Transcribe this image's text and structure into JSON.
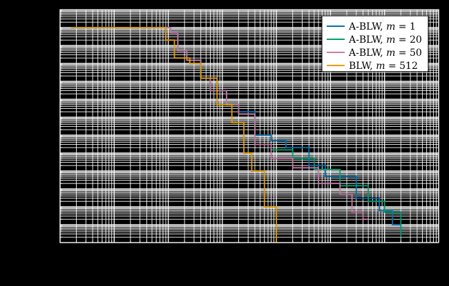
{
  "chart_data": {
    "type": "line",
    "title": "",
    "xlabel": "",
    "ylabel": "",
    "x_scale": "log",
    "y_scale": "log",
    "xlim": [
      1,
      10000000
    ],
    "ylim": [
      1e-12,
      10
    ],
    "grid": true,
    "legend_position": "top-right",
    "series": [
      {
        "name": "A-BLW, m = 1",
        "legend_prefix": "A-BLW, ",
        "legend_var": "m",
        "legend_eq": " = 1",
        "color": "#0072B2",
        "points": [
          [
            1.6,
            1.0
          ],
          [
            60,
            1.0
          ],
          [
            110,
            0.5
          ],
          [
            150,
            0.05
          ],
          [
            220,
            0.015
          ],
          [
            400,
            0.0015
          ],
          [
            500,
            0.0015
          ],
          [
            600,
            0.0003
          ],
          [
            800,
            0.0003
          ],
          [
            1200,
            5e-05
          ],
          [
            2000,
            2e-05
          ],
          [
            4000,
            1e-06
          ],
          [
            8000,
            5e-07
          ],
          [
            15000,
            2e-07
          ],
          [
            40000,
            2e-08
          ],
          [
            80000,
            5e-09
          ],
          [
            300000,
            3e-10
          ],
          [
            800000,
            6e-11
          ],
          [
            1400000,
            1e-11
          ],
          [
            2000000,
            5e-12
          ]
        ]
      },
      {
        "name": "A-BLW, m = 20",
        "legend_prefix": "A-BLW, ",
        "legend_var": "m",
        "legend_eq": " = 20",
        "color": "#009E73",
        "points": [
          [
            60,
            1.0
          ],
          [
            110,
            0.5
          ],
          [
            150,
            0.05
          ],
          [
            220,
            0.015
          ],
          [
            400,
            0.0015
          ],
          [
            500,
            0.0015
          ],
          [
            600,
            0.0003
          ],
          [
            800,
            0.0003
          ],
          [
            1200,
            5e-05
          ],
          [
            2000,
            1.5e-05
          ],
          [
            4000,
            3e-07
          ],
          [
            8000,
            1.5e-07
          ],
          [
            20000,
            5e-08
          ],
          [
            50000,
            1.2e-08
          ],
          [
            150000,
            1.5e-09
          ],
          [
            500000,
            2e-10
          ],
          [
            1000000,
            5e-11
          ],
          [
            2000000,
            2e-12
          ]
        ]
      },
      {
        "name": "A-BLW, m = 50",
        "legend_prefix": "A-BLW, ",
        "legend_var": "m",
        "legend_eq": " = 50",
        "color": "#CC79A7",
        "points": [
          [
            60,
            1.0
          ],
          [
            110,
            0.5
          ],
          [
            150,
            0.05
          ],
          [
            220,
            0.015
          ],
          [
            400,
            0.0015
          ],
          [
            500,
            0.0015
          ],
          [
            600,
            0.0003
          ],
          [
            800,
            0.0003
          ],
          [
            1200,
            5e-05
          ],
          [
            2000,
            1.5e-05
          ],
          [
            4000,
            3e-07
          ],
          [
            8000,
            5e-08
          ],
          [
            20000,
            1.5e-08
          ],
          [
            60000,
            2e-09
          ],
          [
            150000,
            5e-10
          ],
          [
            250000,
            5e-11
          ],
          [
            400000,
            2e-11
          ],
          [
            500000,
            2e-11
          ]
        ]
      },
      {
        "name": "BLW, m = 512",
        "legend_prefix": "BLW, ",
        "legend_var": "m",
        "legend_eq": " = 512",
        "color": "#E69F00",
        "points": [
          [
            1.6,
            1.0
          ],
          [
            60,
            1.0
          ],
          [
            90,
            0.2
          ],
          [
            130,
            0.02
          ],
          [
            250,
            0.01
          ],
          [
            400,
            0.0015
          ],
          [
            800,
            5e-05
          ],
          [
            1500,
            5e-06
          ],
          [
            2500,
            1e-07
          ],
          [
            3500,
            1e-08
          ],
          [
            6000,
            1e-10
          ],
          [
            10000,
            1e-12
          ]
        ]
      }
    ]
  }
}
